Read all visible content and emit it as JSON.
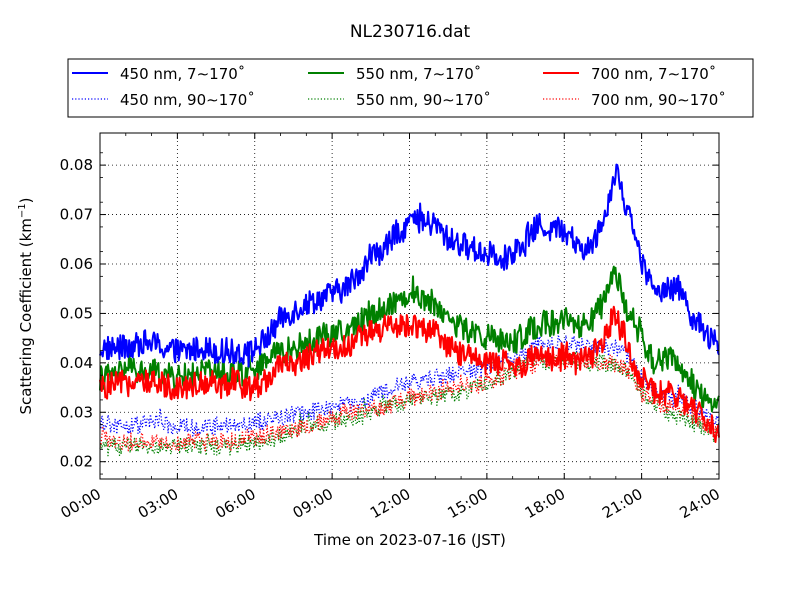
{
  "chart_data": {
    "type": "line",
    "title": "NL230716.dat",
    "xlabel": "Time on 2023-07-16 (JST)",
    "ylabel_main": "Scattering Coefficient (km",
    "ylabel_sup": "−1",
    "ylabel_close": ")",
    "xlim": [
      "2023-07-16 00:00",
      "2023-07-17 00:00"
    ],
    "ylim": [
      0.0165,
      0.0865
    ],
    "x_ticks": [
      "00:00",
      "03:00",
      "06:00",
      "09:00",
      "12:00",
      "15:00",
      "18:00",
      "21:00",
      "24:00"
    ],
    "y_ticks": [
      "0.02",
      "0.03",
      "0.04",
      "0.05",
      "0.06",
      "0.07",
      "0.08"
    ],
    "y_tick_values": [
      0.02,
      0.03,
      0.04,
      0.05,
      0.06,
      0.07,
      0.08
    ],
    "grid": true,
    "legend_placement": "top",
    "series": [
      {
        "name": "450 nm, 7∼170˚",
        "color": "#0000ff",
        "style": "solid",
        "x": [
          "00:00",
          "01:00",
          "02:00",
          "03:00",
          "04:00",
          "05:00",
          "06:00",
          "06:30",
          "07:00",
          "08:00",
          "09:00",
          "09:30",
          "10:00",
          "10:30",
          "11:00",
          "11:30",
          "12:00",
          "12:30",
          "13:00",
          "13:30",
          "14:00",
          "15:00",
          "16:00",
          "16:30",
          "17:00",
          "17:30",
          "18:00",
          "18:30",
          "19:00",
          "19:30",
          "20:00",
          "20:30",
          "21:00",
          "21:30",
          "22:00",
          "22:30",
          "23:00",
          "23:30",
          "24:00"
        ],
        "values": [
          0.043,
          0.043,
          0.044,
          0.042,
          0.043,
          0.042,
          0.043,
          0.045,
          0.049,
          0.052,
          0.054,
          0.055,
          0.058,
          0.061,
          0.063,
          0.066,
          0.069,
          0.068,
          0.068,
          0.065,
          0.064,
          0.062,
          0.061,
          0.064,
          0.068,
          0.067,
          0.067,
          0.063,
          0.063,
          0.069,
          0.079,
          0.07,
          0.06,
          0.054,
          0.056,
          0.055,
          0.049,
          0.046,
          0.043
        ]
      },
      {
        "name": "550 nm, 7∼170˚",
        "color": "#008000",
        "style": "solid",
        "x": [
          "00:00",
          "01:00",
          "02:00",
          "03:00",
          "04:00",
          "05:00",
          "06:00",
          "06:30",
          "07:00",
          "08:00",
          "09:00",
          "09:30",
          "10:00",
          "10:30",
          "11:00",
          "11:30",
          "12:00",
          "12:30",
          "13:00",
          "13:30",
          "14:00",
          "15:00",
          "16:00",
          "16:30",
          "17:00",
          "17:30",
          "18:00",
          "18:30",
          "19:00",
          "19:30",
          "20:00",
          "20:30",
          "21:00",
          "21:30",
          "22:00",
          "22:30",
          "23:00",
          "23:30",
          "24:00"
        ],
        "values": [
          0.037,
          0.038,
          0.038,
          0.037,
          0.038,
          0.038,
          0.038,
          0.04,
          0.042,
          0.044,
          0.046,
          0.046,
          0.048,
          0.05,
          0.051,
          0.053,
          0.054,
          0.053,
          0.052,
          0.049,
          0.047,
          0.045,
          0.044,
          0.046,
          0.048,
          0.048,
          0.048,
          0.047,
          0.048,
          0.052,
          0.058,
          0.05,
          0.044,
          0.04,
          0.041,
          0.039,
          0.035,
          0.033,
          0.031
        ]
      },
      {
        "name": "700 nm, 7∼170˚",
        "color": "#ff0000",
        "style": "solid",
        "x": [
          "00:00",
          "01:00",
          "02:00",
          "03:00",
          "04:00",
          "05:00",
          "06:00",
          "06:30",
          "07:00",
          "08:00",
          "09:00",
          "09:30",
          "10:00",
          "10:30",
          "11:00",
          "11:30",
          "12:00",
          "12:30",
          "13:00",
          "13:30",
          "14:00",
          "15:00",
          "16:00",
          "16:30",
          "17:00",
          "17:30",
          "18:00",
          "18:30",
          "19:00",
          "19:30",
          "20:00",
          "20:30",
          "21:00",
          "21:30",
          "22:00",
          "22:30",
          "23:00",
          "23:30",
          "24:00"
        ],
        "values": [
          0.035,
          0.036,
          0.036,
          0.035,
          0.036,
          0.035,
          0.035,
          0.037,
          0.039,
          0.041,
          0.043,
          0.043,
          0.045,
          0.046,
          0.047,
          0.047,
          0.048,
          0.047,
          0.046,
          0.043,
          0.042,
          0.04,
          0.039,
          0.04,
          0.042,
          0.041,
          0.04,
          0.04,
          0.041,
          0.044,
          0.049,
          0.042,
          0.037,
          0.034,
          0.034,
          0.032,
          0.03,
          0.028,
          0.026
        ]
      },
      {
        "name": "450 nm, 90∼170˚",
        "color": "#0000ff",
        "style": "dotted",
        "x": [
          "00:00",
          "01:00",
          "02:00",
          "03:00",
          "04:00",
          "05:00",
          "06:00",
          "07:00",
          "08:00",
          "09:00",
          "10:00",
          "11:00",
          "12:00",
          "13:00",
          "14:00",
          "15:00",
          "16:00",
          "17:00",
          "18:00",
          "19:00",
          "20:00",
          "20:30",
          "21:00",
          "22:00",
          "23:00",
          "24:00"
        ],
        "values": [
          0.028,
          0.027,
          0.028,
          0.027,
          0.027,
          0.027,
          0.028,
          0.029,
          0.03,
          0.031,
          0.032,
          0.034,
          0.036,
          0.037,
          0.038,
          0.039,
          0.041,
          0.043,
          0.044,
          0.043,
          0.043,
          0.041,
          0.037,
          0.033,
          0.031,
          0.028
        ]
      },
      {
        "name": "550 nm, 90∼170˚",
        "color": "#008000",
        "style": "dotted",
        "x": [
          "00:00",
          "01:00",
          "02:00",
          "03:00",
          "04:00",
          "05:00",
          "06:00",
          "07:00",
          "08:00",
          "09:00",
          "10:00",
          "11:00",
          "12:00",
          "13:00",
          "14:00",
          "15:00",
          "16:00",
          "17:00",
          "18:00",
          "19:00",
          "20:00",
          "20:30",
          "21:00",
          "22:00",
          "23:00",
          "24:00"
        ],
        "values": [
          0.023,
          0.023,
          0.023,
          0.023,
          0.023,
          0.023,
          0.024,
          0.025,
          0.027,
          0.028,
          0.029,
          0.031,
          0.032,
          0.033,
          0.034,
          0.036,
          0.038,
          0.04,
          0.041,
          0.04,
          0.04,
          0.038,
          0.034,
          0.03,
          0.028,
          0.025
        ]
      },
      {
        "name": "700 nm, 90∼170˚",
        "color": "#ff0000",
        "style": "dotted",
        "x": [
          "00:00",
          "01:00",
          "02:00",
          "03:00",
          "04:00",
          "05:00",
          "06:00",
          "07:00",
          "08:00",
          "09:00",
          "10:00",
          "11:00",
          "12:00",
          "13:00",
          "14:00",
          "15:00",
          "16:00",
          "17:00",
          "18:00",
          "19:00",
          "20:00",
          "20:30",
          "21:00",
          "22:00",
          "23:00",
          "24:00"
        ],
        "values": [
          0.024,
          0.024,
          0.024,
          0.024,
          0.024,
          0.024,
          0.025,
          0.026,
          0.027,
          0.029,
          0.03,
          0.031,
          0.033,
          0.034,
          0.035,
          0.036,
          0.038,
          0.04,
          0.041,
          0.04,
          0.04,
          0.038,
          0.034,
          0.031,
          0.029,
          0.026
        ]
      }
    ]
  }
}
